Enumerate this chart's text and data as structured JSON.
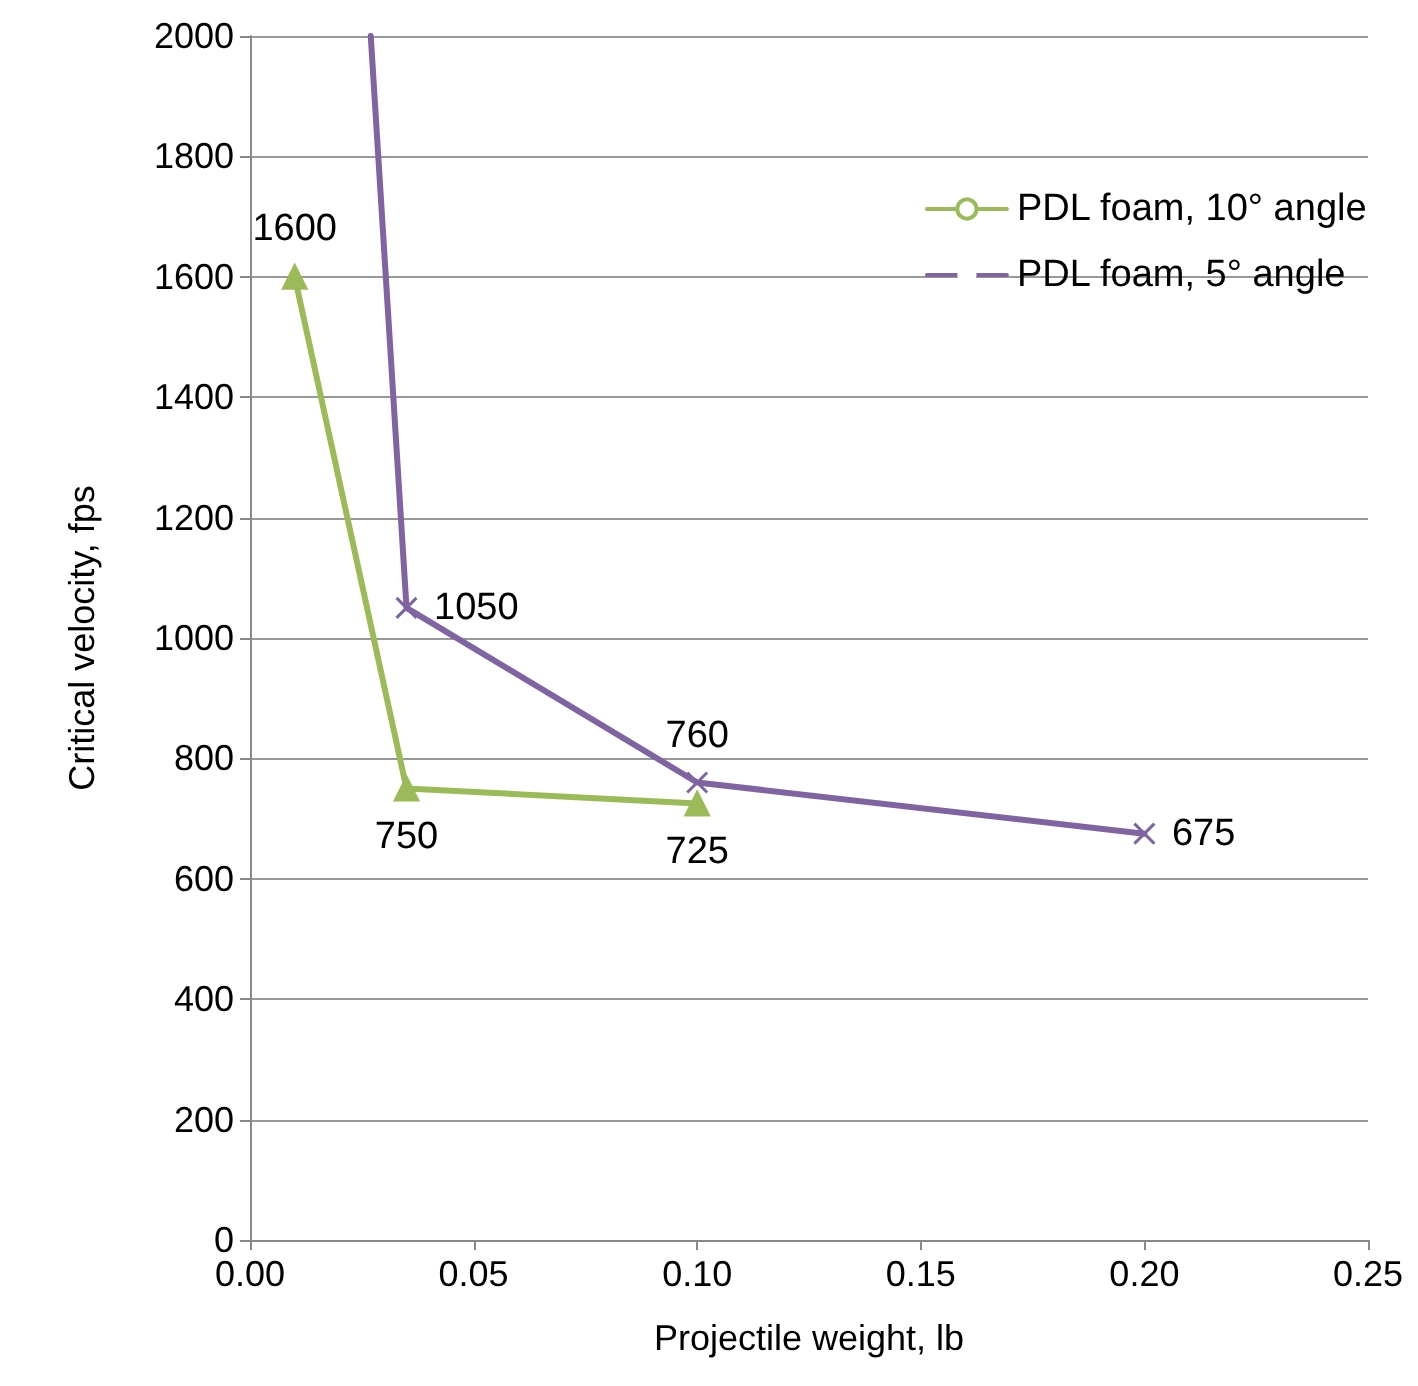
{
  "chart_data": {
    "type": "line",
    "xlabel": "Projectile weight, lb",
    "ylabel": "Critical velocity, fps",
    "xlim": [
      0,
      0.25
    ],
    "xticks": [
      {
        "value": 0,
        "label": "0.00"
      },
      {
        "value": 0.05,
        "label": "0.05"
      },
      {
        "value": 0.1,
        "label": "0.10"
      },
      {
        "value": 0.15,
        "label": "0.15"
      },
      {
        "value": 0.2,
        "label": "0.20"
      },
      {
        "value": 0.25,
        "label": "0.25"
      }
    ],
    "ylim": [
      0,
      2000
    ],
    "yticks": [
      0,
      200,
      400,
      600,
      800,
      1000,
      1200,
      1400,
      1600,
      1800,
      2000
    ],
    "grid": "y",
    "legend": "top right",
    "series": [
      {
        "name": "PDL foam, 10° angle",
        "color": "#9bbb59",
        "marker": "triangle",
        "x": [
          0.01,
          0.035,
          0.1
        ],
        "values": [
          1600,
          750,
          725
        ],
        "value_labels": [
          "1600",
          "750",
          "725"
        ]
      },
      {
        "name": "PDL foam, 5° angle",
        "color": "#8064a2",
        "marker": "cross",
        "x": [
          0.027,
          0.035,
          0.1,
          0.2
        ],
        "values": [
          2000,
          1050,
          760,
          675
        ],
        "value_labels": [
          null,
          "1050",
          "760",
          "675"
        ]
      }
    ]
  }
}
